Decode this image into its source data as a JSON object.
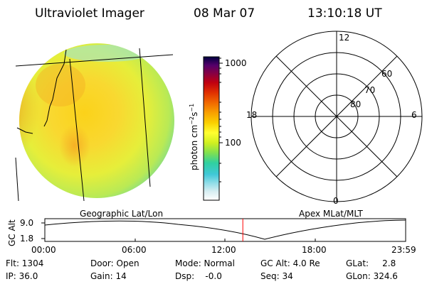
{
  "header": {
    "instrument": "Ultraviolet Imager",
    "date": "08 Mar 07",
    "time": "13:10:18 UT"
  },
  "colorbar": {
    "unit_label": "photon cm",
    "unit_exp1": "−2",
    "unit_mid": "s",
    "unit_exp2": "−1",
    "tick_top": "1000",
    "tick_mid": "100",
    "scale": "log",
    "colors": [
      "#000040",
      "#2a0050",
      "#55006a",
      "#8a0040",
      "#c00010",
      "#e03000",
      "#f06800",
      "#f8a000",
      "#fbd000",
      "#ffff30",
      "#d0f020",
      "#80e050",
      "#30d0a0",
      "#40c8d8",
      "#90dde8",
      "#d8eef2",
      "#ffffff"
    ]
  },
  "polar": {
    "mlt_labels": {
      "top": "12",
      "left": "18",
      "right": "6",
      "bottom": "0"
    },
    "lat_labels": [
      "60",
      "70",
      "80"
    ]
  },
  "timeline": {
    "left_title": "Geographic Lat/Lon",
    "right_title": "Apex MLat/MLT",
    "ylabel": "GC Alt",
    "ytick_top": "9.0",
    "ytick_bottom": "1.8",
    "xticks": [
      "00:00",
      "06:00",
      "12:00",
      "18:00",
      "23:59"
    ],
    "current_marker_hours": 13.17,
    "marker_color": "#ff0000"
  },
  "status": {
    "flt": "Flt: 1304",
    "ip": "IP: 36.0",
    "door": "Door: Open",
    "gain": "Gain: 14",
    "mode": "Mode: Normal",
    "dsp": "Dsp:    -0.0",
    "gcalt": "GC Alt: 4.0 Re",
    "seq": "Seq: 34",
    "glat": "GLat:     2.8",
    "glon": "GLon: 324.6"
  }
}
